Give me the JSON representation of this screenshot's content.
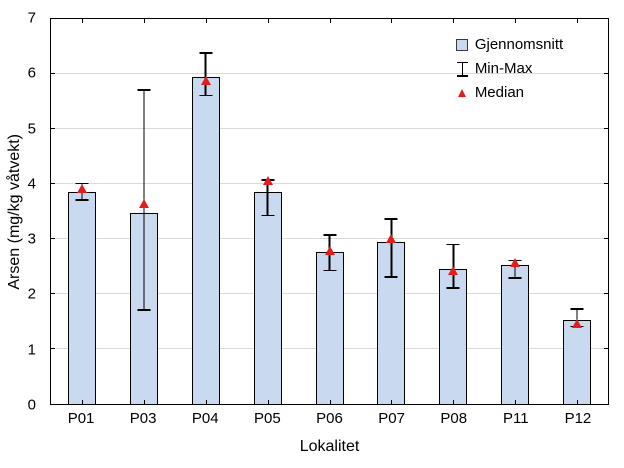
{
  "chart_data": {
    "type": "bar",
    "title": "",
    "xlabel": "Lokalitet",
    "ylabel": "Arsen (mg/kg våtvekt)",
    "ylim": [
      0,
      7
    ],
    "yticks": [
      0,
      1,
      2,
      3,
      4,
      5,
      6,
      7
    ],
    "grid": "horizontal",
    "legend_position": "top-right-inside",
    "legend": [
      {
        "name": "Gjennomsnitt",
        "marker": "bar-swatch"
      },
      {
        "name": "Min-Max",
        "marker": "error-bar"
      },
      {
        "name": "Median",
        "marker": "red-triangle"
      }
    ],
    "categories": [
      "P01",
      "P03",
      "P04",
      "P05",
      "P06",
      "P07",
      "P08",
      "P11",
      "P12"
    ],
    "series": [
      {
        "name": "Gjennomsnitt",
        "role": "mean",
        "values": [
          3.85,
          3.48,
          5.95,
          3.86,
          2.77,
          2.94,
          2.46,
          2.53,
          1.53
        ]
      },
      {
        "name": "Min",
        "role": "min",
        "values": [
          3.7,
          1.7,
          5.6,
          3.41,
          2.41,
          2.3,
          2.1,
          2.28,
          1.4
        ]
      },
      {
        "name": "Max",
        "role": "max",
        "values": [
          4.02,
          5.72,
          6.4,
          4.09,
          3.09,
          3.38,
          2.91,
          2.62,
          1.74
        ]
      },
      {
        "name": "Median",
        "role": "median",
        "values": [
          3.91,
          3.65,
          5.88,
          4.07,
          2.79,
          3.01,
          2.42,
          2.58,
          1.47
        ]
      }
    ],
    "colors": {
      "bar_fill": "#c9d9f0",
      "bar_border": "#000000",
      "error_bar": "#000000",
      "median_marker": "#e31c1c",
      "gridline": "#d9d9d9",
      "frame": "#000000",
      "background": "#ffffff",
      "text": "#000000"
    }
  }
}
